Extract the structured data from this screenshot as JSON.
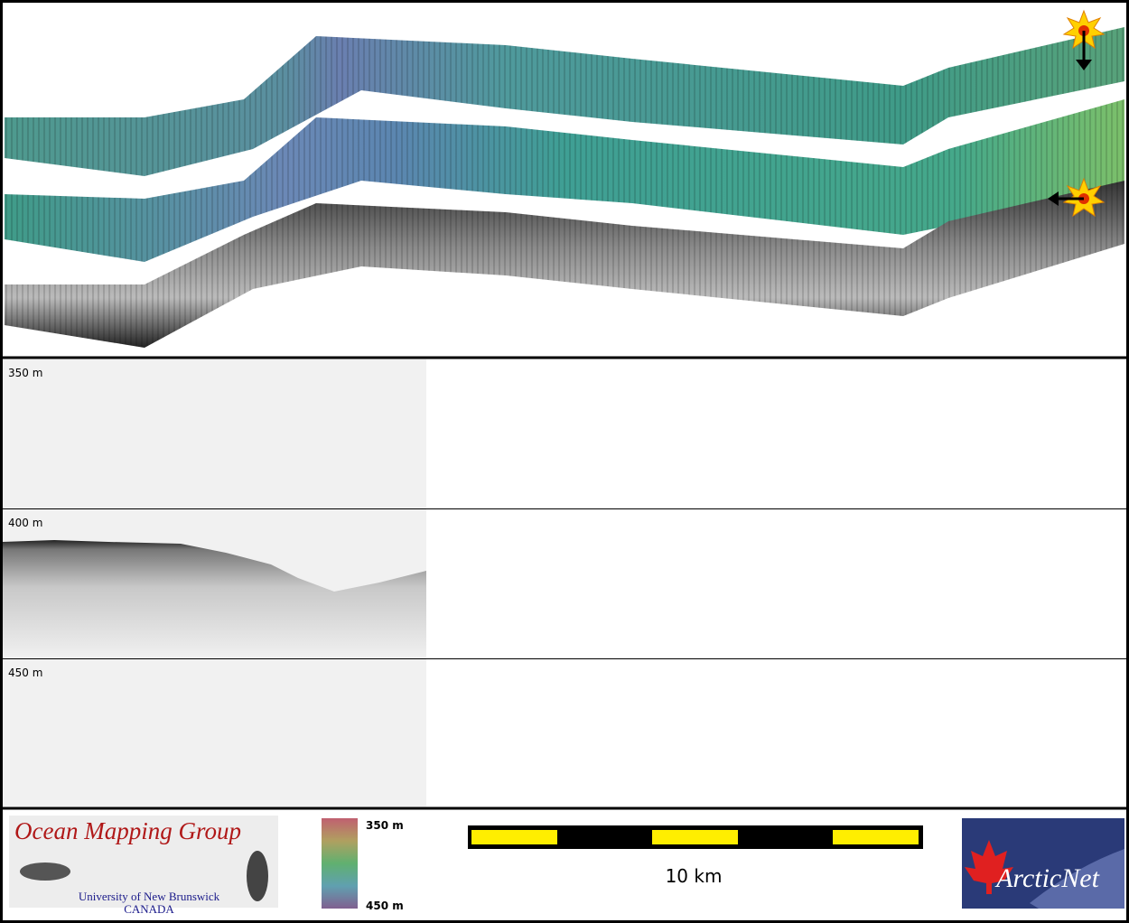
{
  "profile": {
    "depth_labels": [
      "350 m",
      "400 m",
      "450 m"
    ]
  },
  "footer": {
    "logo": {
      "title": "Ocean Mapping Group",
      "subtitle": "University of New Brunswick",
      "country": "CANADA"
    },
    "colorbar": {
      "top_label": "350 m",
      "bottom_label": "450 m"
    },
    "scale_bar": {
      "label": "10 km"
    },
    "partner": {
      "name": "ArcticNet"
    }
  }
}
